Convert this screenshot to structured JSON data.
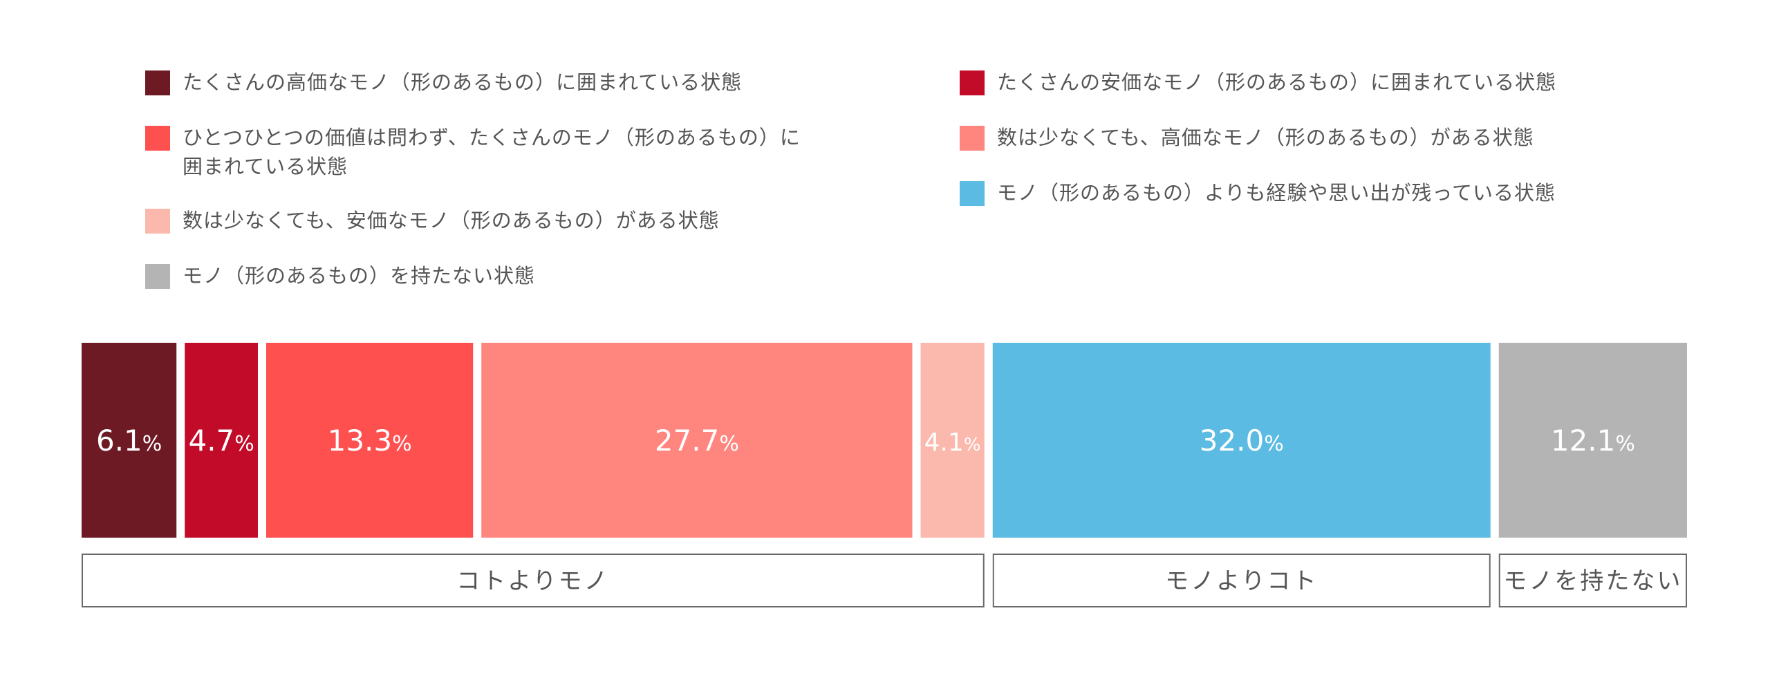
{
  "chart_data": {
    "type": "bar",
    "orientation": "horizontal-stacked",
    "value_unit": "%",
    "segments": [
      {
        "series_index": 0,
        "value": 6.1,
        "value_text": "6.1",
        "color": "#6e1a24"
      },
      {
        "series_index": 1,
        "value": 4.7,
        "value_text": "4.7",
        "color": "#c20a29"
      },
      {
        "series_index": 2,
        "value": 13.3,
        "value_text": "13.3",
        "color": "#ff5050"
      },
      {
        "series_index": 3,
        "value": 27.7,
        "value_text": "27.7",
        "color": "#ff857f"
      },
      {
        "series_index": 4,
        "value": 4.1,
        "value_text": "4.1",
        "color": "#fbb9ad"
      },
      {
        "series_index": 5,
        "value": 32.0,
        "value_text": "32.0",
        "color": "#5bbbe3"
      },
      {
        "series_index": 6,
        "value": 12.1,
        "value_text": "12.1",
        "color": "#b4b4b4"
      }
    ],
    "series": [
      {
        "name": "たくさんの高価なモノ（形のあるもの）に囲まれている状態",
        "value": 6.1,
        "color": "#6e1a24"
      },
      {
        "name": "たくさんの安価なモノ（形のあるもの）に囲まれている状態",
        "value": 4.7,
        "color": "#c20a29"
      },
      {
        "name": "ひとつひとつの価値は問わず、たくさんのモノ（形のあるもの）に\n囲まれている状態",
        "value": 13.3,
        "color": "#ff5050"
      },
      {
        "name": "数は少なくても、高価なモノ（形のあるもの）がある状態",
        "value": 27.7,
        "color": "#ff857f"
      },
      {
        "name": "数は少なくても、安価なモノ（形のあるもの）がある状態",
        "value": 4.1,
        "color": "#fbb9ad"
      },
      {
        "name": "モノ（形のあるもの）よりも経験や思い出が残っている状態",
        "value": 32.0,
        "color": "#5bbbe3"
      },
      {
        "name": "モノ（形のあるもの）を持たない状態",
        "value": 12.1,
        "color": "#b4b4b4"
      }
    ],
    "legend_order": [
      0,
      2,
      4,
      6,
      1,
      3,
      5
    ],
    "groups": [
      {
        "label": "コトよりモノ",
        "series_indices": [
          0,
          1,
          2,
          3,
          4
        ]
      },
      {
        "label": "モノよりコト",
        "series_indices": [
          5
        ]
      },
      {
        "label": "モノを持たない",
        "series_indices": [
          6
        ]
      }
    ],
    "title": "",
    "xlabel": "",
    "ylabel": "",
    "grid": false,
    "legend_position": "top"
  }
}
